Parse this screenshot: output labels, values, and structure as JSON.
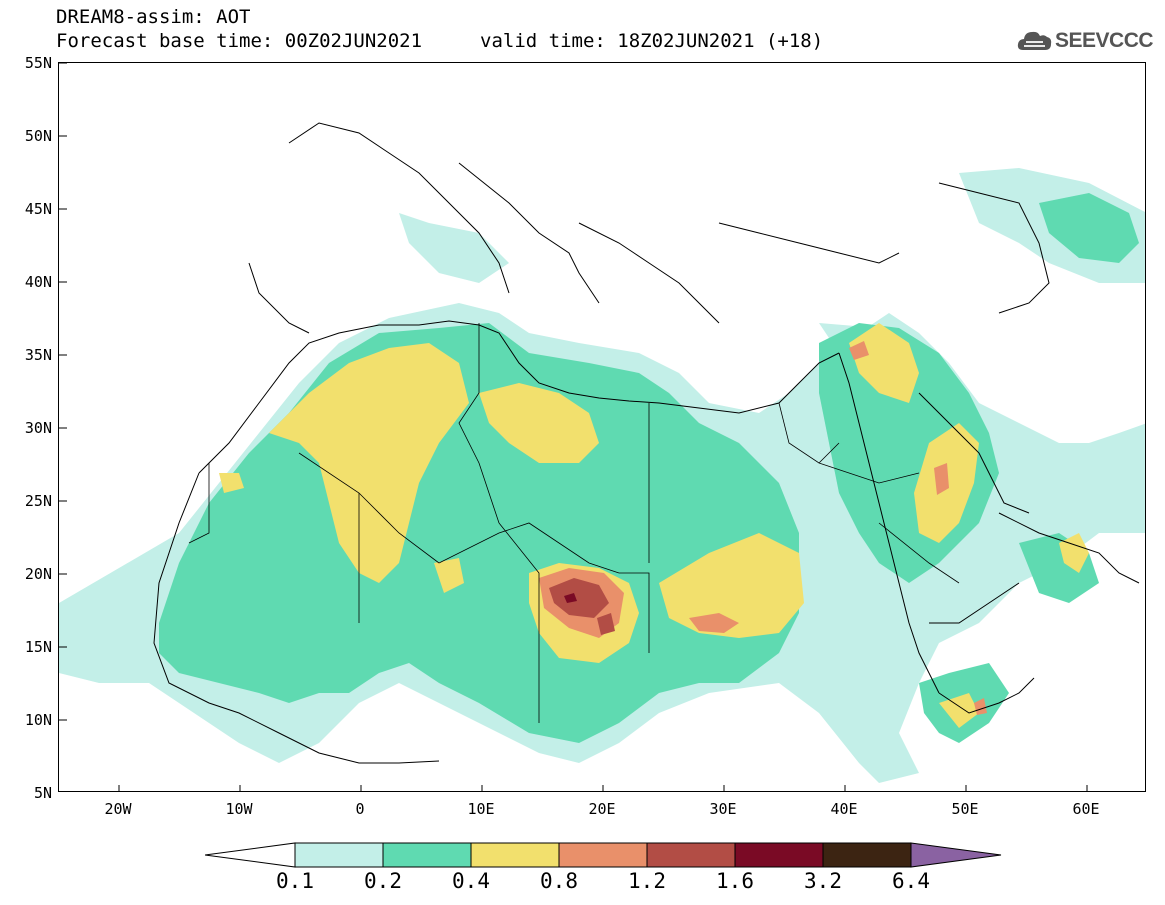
{
  "header": {
    "title": "DREAM8-assim: AOT",
    "forecast": "Forecast base time: 00Z02JUN2021",
    "valid": "valid time: 18Z02JUN2021 (+18)"
  },
  "logo": {
    "text": "SEEVCCC",
    "icon": "cloud-icon"
  },
  "map": {
    "lon_range": [
      -25,
      65
    ],
    "lat_range": [
      5,
      55
    ],
    "lat_ticks": [
      "55N",
      "50N",
      "45N",
      "40N",
      "35N",
      "30N",
      "25N",
      "20N",
      "15N",
      "10N",
      "5N"
    ],
    "lon_ticks": [
      "20W",
      "10W",
      "0",
      "10E",
      "20E",
      "30E",
      "40E",
      "50E",
      "60E"
    ]
  },
  "colorbar": {
    "labels": [
      "0.1",
      "0.2",
      "0.4",
      "0.8",
      "1.2",
      "1.6",
      "3.2",
      "6.4"
    ],
    "colors": {
      "lt01": "#ffffff",
      "c01_02": "#c3efe8",
      "c02_04": "#5fdab1",
      "c04_08": "#f2e06d",
      "c08_12": "#e9906a",
      "c12_16": "#b24d45",
      "c16_32": "#7a0a25",
      "c32_64": "#3c2412",
      "gt64": "#8a62a2"
    }
  }
}
